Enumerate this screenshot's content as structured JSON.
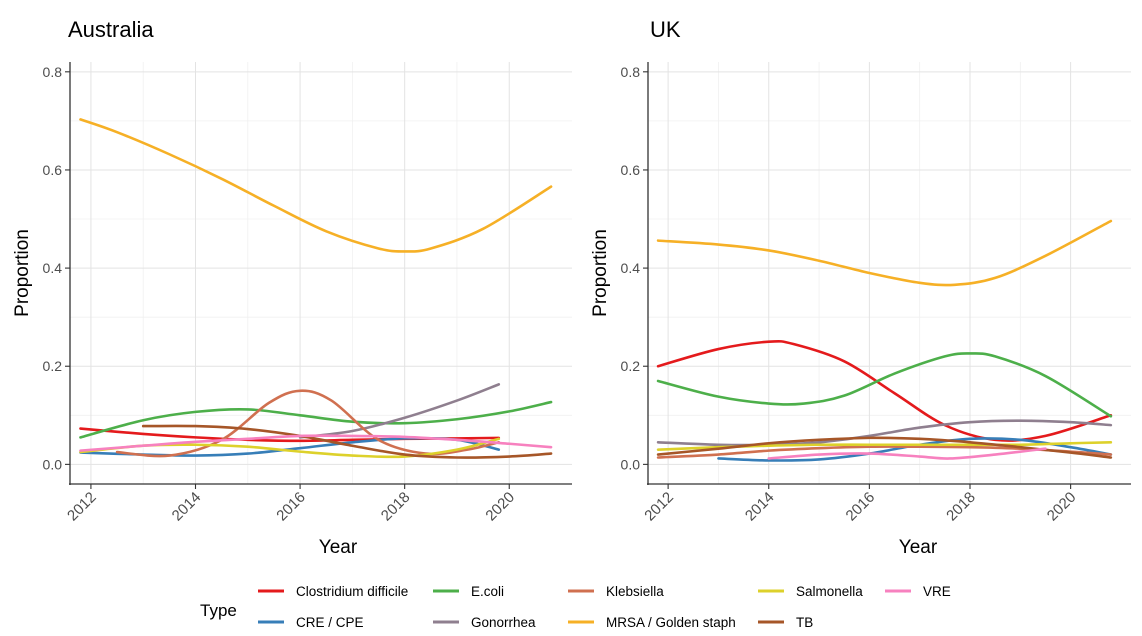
{
  "chart_data": [
    {
      "type": "line",
      "title": "Australia",
      "xlabel": "Year",
      "ylabel": "Proportion",
      "xlim": [
        2011.6,
        2021.2
      ],
      "ylim": [
        -0.04,
        0.82
      ],
      "xticks": [
        "2012",
        "2014",
        "2016",
        "2018",
        "2020"
      ],
      "yticks": [
        "0.0",
        "0.2",
        "0.4",
        "0.6",
        "0.8"
      ],
      "grid": true,
      "series": [
        {
          "name": "Clostridium difficile",
          "color": "#E41A1C",
          "x": [
            2011.8,
            2013,
            2014,
            2015,
            2016,
            2017,
            2018,
            2019,
            2019.8
          ],
          "y": [
            0.073,
            0.062,
            0.055,
            0.05,
            0.048,
            0.05,
            0.052,
            0.053,
            0.054
          ]
        },
        {
          "name": "CRE / CPE",
          "color": "#377EB8",
          "x": [
            2011.8,
            2013,
            2014,
            2015,
            2016,
            2017,
            2018,
            2019,
            2019.8
          ],
          "y": [
            0.024,
            0.02,
            0.018,
            0.022,
            0.033,
            0.045,
            0.053,
            0.05,
            0.03
          ]
        },
        {
          "name": "E.coli",
          "color": "#4DAF4A",
          "x": [
            2011.8,
            2013,
            2014,
            2015,
            2016,
            2017,
            2018,
            2019,
            2020,
            2020.8
          ],
          "y": [
            0.055,
            0.09,
            0.107,
            0.112,
            0.1,
            0.087,
            0.084,
            0.092,
            0.108,
            0.127
          ]
        },
        {
          "name": "Gonorrhea",
          "color": "#8F7F8F",
          "x": [
            2016,
            2017,
            2018,
            2019,
            2019.8
          ],
          "y": [
            0.055,
            0.068,
            0.095,
            0.13,
            0.163
          ]
        },
        {
          "name": "Klebsiella",
          "color": "#D07050",
          "x": [
            2012.5,
            2013.5,
            2014.5,
            2015.4,
            2016,
            2016.6,
            2017.5,
            2018.4,
            2019.2,
            2019.8
          ],
          "y": [
            0.025,
            0.018,
            0.05,
            0.125,
            0.15,
            0.13,
            0.05,
            0.022,
            0.03,
            0.045
          ]
        },
        {
          "name": "MRSA / Golden staph",
          "color": "#F6B026",
          "x": [
            2011.8,
            2012.5,
            2013.5,
            2014.5,
            2015.5,
            2016.5,
            2017.5,
            2018,
            2018.5,
            2019.5,
            2020.8
          ],
          "y": [
            0.703,
            0.677,
            0.632,
            0.582,
            0.527,
            0.475,
            0.44,
            0.434,
            0.44,
            0.48,
            0.566
          ]
        },
        {
          "name": "Salmonella",
          "color": "#DDD12B",
          "x": [
            2011.8,
            2013,
            2014,
            2015,
            2016,
            2017,
            2018,
            2019,
            2019.8
          ],
          "y": [
            0.025,
            0.038,
            0.04,
            0.036,
            0.026,
            0.018,
            0.016,
            0.03,
            0.052
          ]
        },
        {
          "name": "TB",
          "color": "#A65628",
          "x": [
            2013,
            2014,
            2015,
            2016,
            2017,
            2018,
            2019,
            2020,
            2020.8
          ],
          "y": [
            0.078,
            0.078,
            0.072,
            0.058,
            0.038,
            0.02,
            0.014,
            0.016,
            0.022
          ]
        },
        {
          "name": "VRE",
          "color": "#F781BF",
          "x": [
            2011.8,
            2013,
            2014,
            2015,
            2016,
            2017,
            2018,
            2019,
            2020,
            2020.8
          ],
          "y": [
            0.028,
            0.038,
            0.046,
            0.052,
            0.058,
            0.058,
            0.056,
            0.05,
            0.042,
            0.035
          ]
        }
      ]
    },
    {
      "type": "line",
      "title": "UK",
      "xlabel": "Year",
      "ylabel": "Proportion",
      "xlim": [
        2011.6,
        2021.2
      ],
      "ylim": [
        -0.04,
        0.82
      ],
      "xticks": [
        "2012",
        "2014",
        "2016",
        "2018",
        "2020"
      ],
      "yticks": [
        "0.0",
        "0.2",
        "0.4",
        "0.6",
        "0.8"
      ],
      "grid": true,
      "series": [
        {
          "name": "Clostridium difficile",
          "color": "#E41A1C",
          "x": [
            2011.8,
            2013,
            2014,
            2014.5,
            2015.5,
            2016.5,
            2017.5,
            2018.5,
            2019.5,
            2020.8
          ],
          "y": [
            0.2,
            0.235,
            0.25,
            0.245,
            0.21,
            0.145,
            0.08,
            0.05,
            0.058,
            0.1
          ]
        },
        {
          "name": "CRE / CPE",
          "color": "#377EB8",
          "x": [
            2013,
            2014,
            2015,
            2016,
            2017,
            2018,
            2019,
            2020,
            2020.8
          ],
          "y": [
            0.012,
            0.008,
            0.01,
            0.022,
            0.04,
            0.052,
            0.05,
            0.035,
            0.02
          ]
        },
        {
          "name": "E.coli",
          "color": "#4DAF4A",
          "x": [
            2011.8,
            2013,
            2014,
            2014.7,
            2015.5,
            2016.5,
            2017.5,
            2018,
            2018.5,
            2019.5,
            2020.8
          ],
          "y": [
            0.17,
            0.138,
            0.124,
            0.124,
            0.14,
            0.185,
            0.22,
            0.226,
            0.22,
            0.18,
            0.098
          ]
        },
        {
          "name": "Gonorrhea",
          "color": "#8F7F8F",
          "x": [
            2011.8,
            2013,
            2014,
            2015,
            2016,
            2017,
            2018,
            2019,
            2020,
            2020.8
          ],
          "y": [
            0.045,
            0.04,
            0.04,
            0.045,
            0.058,
            0.075,
            0.086,
            0.089,
            0.086,
            0.08
          ]
        },
        {
          "name": "Klebsiella",
          "color": "#D07050",
          "x": [
            2011.8,
            2013,
            2014,
            2015,
            2016,
            2017,
            2018,
            2019,
            2020,
            2020.8
          ],
          "y": [
            0.014,
            0.02,
            0.028,
            0.033,
            0.036,
            0.036,
            0.035,
            0.032,
            0.026,
            0.02
          ]
        },
        {
          "name": "MRSA / Golden staph",
          "color": "#F6B026",
          "x": [
            2011.8,
            2013,
            2014,
            2015,
            2016,
            2017,
            2017.7,
            2018.5,
            2019.5,
            2020.8
          ],
          "y": [
            0.456,
            0.448,
            0.436,
            0.415,
            0.39,
            0.37,
            0.366,
            0.38,
            0.425,
            0.496
          ]
        },
        {
          "name": "Salmonella",
          "color": "#DDD12B",
          "x": [
            2011.8,
            2013,
            2014,
            2015,
            2016,
            2017,
            2018,
            2019,
            2020,
            2020.8
          ],
          "y": [
            0.03,
            0.035,
            0.038,
            0.04,
            0.04,
            0.04,
            0.04,
            0.04,
            0.043,
            0.045
          ]
        },
        {
          "name": "TB",
          "color": "#A65628",
          "x": [
            2011.8,
            2013,
            2014,
            2015,
            2016,
            2017,
            2018,
            2019,
            2020,
            2020.8
          ],
          "y": [
            0.02,
            0.032,
            0.043,
            0.05,
            0.054,
            0.052,
            0.045,
            0.035,
            0.024,
            0.014
          ]
        },
        {
          "name": "VRE",
          "color": "#F781BF",
          "x": [
            2014,
            2015,
            2016,
            2017,
            2017.6,
            2018.5,
            2019.5
          ],
          "y": [
            0.012,
            0.02,
            0.022,
            0.016,
            0.012,
            0.02,
            0.032
          ]
        }
      ]
    }
  ],
  "legend": {
    "title": "Type",
    "items": [
      {
        "label": "Clostridium difficile",
        "color": "#E41A1C"
      },
      {
        "label": "CRE / CPE",
        "color": "#377EB8"
      },
      {
        "label": "E.coli",
        "color": "#4DAF4A"
      },
      {
        "label": "Gonorrhea",
        "color": "#8F7F8F"
      },
      {
        "label": "Klebsiella",
        "color": "#D07050"
      },
      {
        "label": "MRSA / Golden staph",
        "color": "#F6B026"
      },
      {
        "label": "Salmonella",
        "color": "#DDD12B"
      },
      {
        "label": "TB",
        "color": "#A65628"
      },
      {
        "label": "VRE",
        "color": "#F781BF"
      }
    ]
  }
}
